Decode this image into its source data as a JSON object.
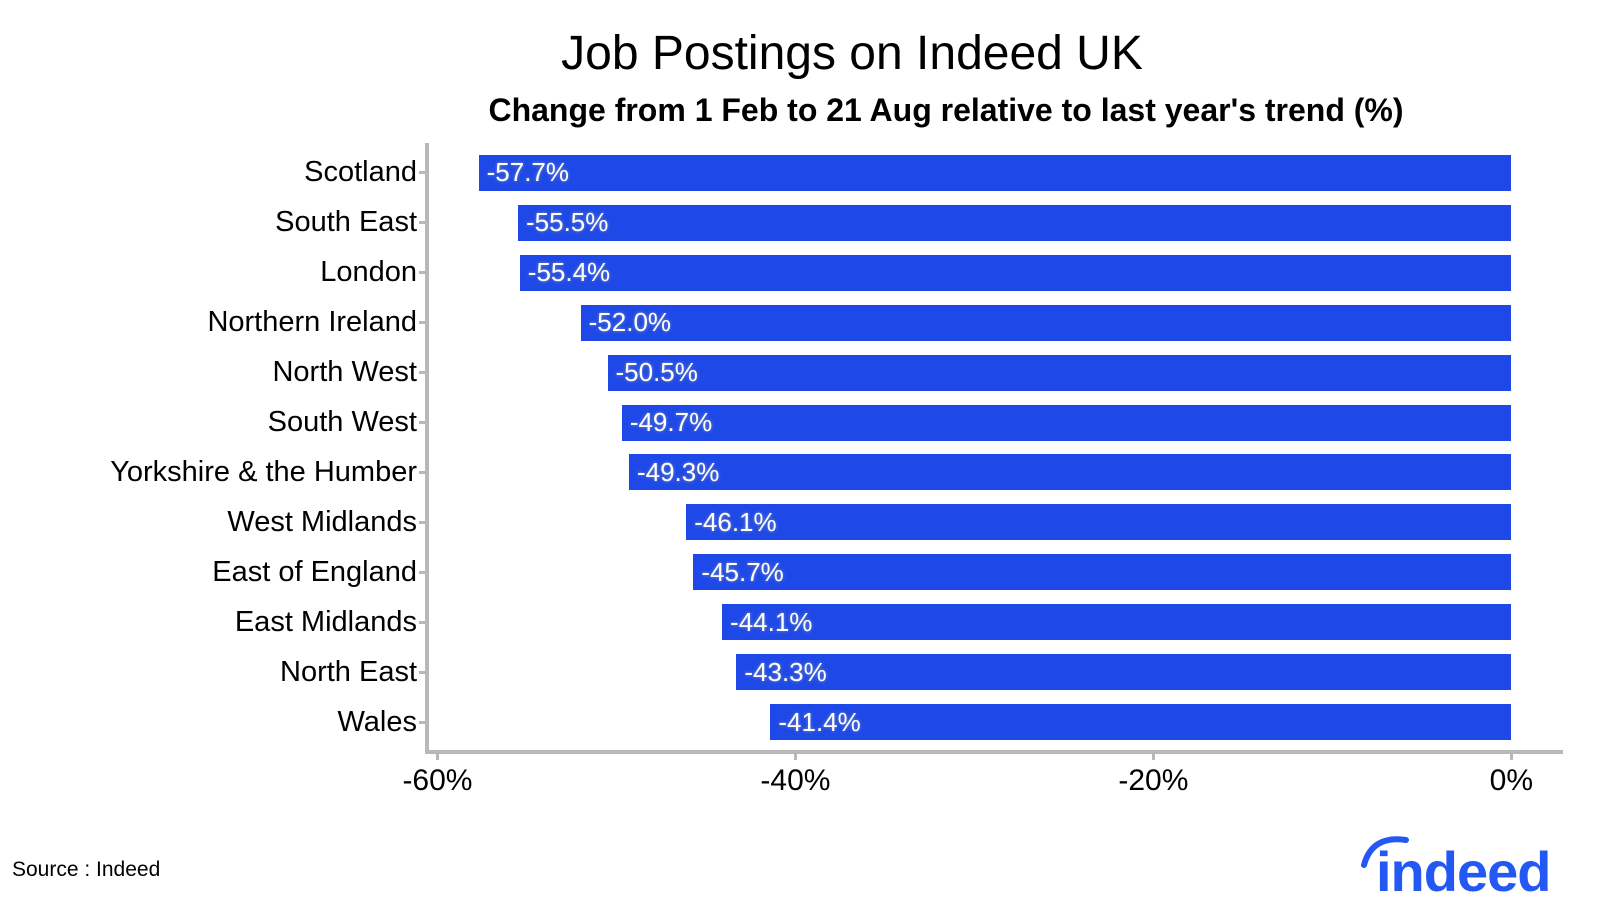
{
  "header": {
    "title": "Job Postings on Indeed UK",
    "subtitle": "Change from 1 Feb to 21 Aug relative to last year's trend (%)"
  },
  "chart_data": {
    "type": "bar",
    "orientation": "horizontal",
    "title": "Job Postings on Indeed UK",
    "subtitle": "Change from 1 Feb to 21 Aug relative to last year's trend (%)",
    "categories": [
      "Scotland",
      "South East",
      "London",
      "Northern Ireland",
      "North West",
      "South West",
      "Yorkshire & the Humber",
      "West Midlands",
      "East of England",
      "East Midlands",
      "North East",
      "Wales"
    ],
    "values": [
      -57.7,
      -55.5,
      -55.4,
      -52.0,
      -50.5,
      -49.7,
      -49.3,
      -46.1,
      -45.7,
      -44.1,
      -43.3,
      -41.4
    ],
    "bar_labels": [
      "-57.7%",
      "-55.5%",
      "-55.4%",
      "-52.0%",
      "-50.5%",
      "-49.7%",
      "-49.3%",
      "-46.1%",
      "-45.7%",
      "-44.1%",
      "-43.3%",
      "-41.4%"
    ],
    "xlabel": "",
    "ylabel": "",
    "xlim_data": [
      -60,
      0
    ],
    "x_ticks": [
      {
        "value": -60,
        "label": "-60%"
      },
      {
        "value": -40,
        "label": "-40%"
      },
      {
        "value": -20,
        "label": "-20%"
      },
      {
        "value": 0,
        "label": "0%"
      }
    ],
    "grid": "off",
    "legend": "none",
    "bar_color": "#1E49E8",
    "value_label_color": "#FFFFFF",
    "axis_color": "#B8B8B8",
    "text_color": "#000000"
  },
  "footer": {
    "source": "Source : Indeed",
    "logo_text": "indeed",
    "logo_color": "#2458F3"
  }
}
